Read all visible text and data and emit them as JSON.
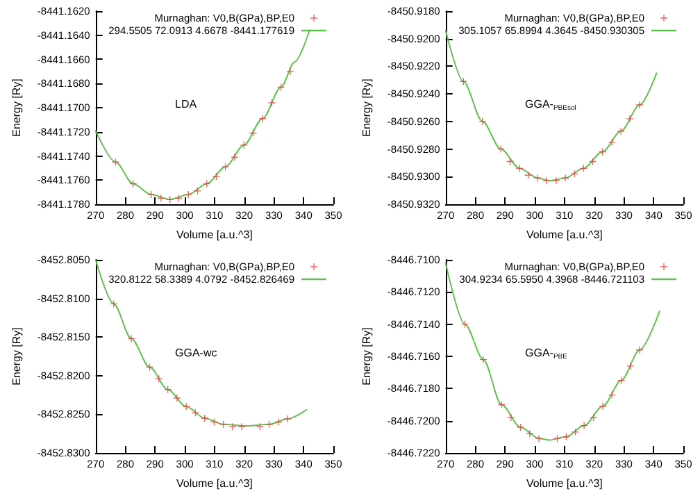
{
  "chart_data": [
    {
      "type": "scatter",
      "xlabel": "Volume [a.u.^3]",
      "ylabel": "Energy [Ry]",
      "annotations": [
        "LDA"
      ],
      "legend": "top right",
      "grid": false,
      "xlim": [
        270,
        350
      ],
      "xticks": [
        270,
        280,
        290,
        300,
        310,
        320,
        330,
        340,
        350
      ],
      "ylim": [
        -8441.178,
        -8441.162
      ],
      "yticks": [
        {
          "value": -8441.178,
          "label": "-8441.1780"
        },
        {
          "value": -8441.176,
          "label": "-8441.1760"
        },
        {
          "value": -8441.174,
          "label": "-8441.1740"
        },
        {
          "value": -8441.172,
          "label": "-8441.1720"
        },
        {
          "value": -8441.17,
          "label": "-8441.1700"
        },
        {
          "value": -8441.168,
          "label": "-8441.1680"
        },
        {
          "value": -8441.166,
          "label": "-8441.1660"
        },
        {
          "value": -8441.164,
          "label": "-8441.1640"
        },
        {
          "value": -8441.162,
          "label": "-8441.1620"
        }
      ],
      "series": [
        {
          "marker": "cross",
          "name": "Murnaghan: V0,B(GPa),BP,E0",
          "color": "#e04040",
          "x": [
            276.7,
            282.6,
            288.7,
            292,
            295,
            297.9,
            301.2,
            304.3,
            307.4,
            310.6,
            313.7,
            316.8,
            319.9,
            323,
            326.2,
            329.3,
            332.4,
            335.5
          ],
          "values": [
            -8441.1745,
            -8441.1763,
            -8441.1772,
            -8441.1775,
            -8441.1776,
            -8441.1775,
            -8441.1772,
            -8441.1769,
            -8441.1763,
            -8441.1757,
            -8441.1749,
            -8441.1741,
            -8441.1731,
            -8441.1721,
            -8441.1709,
            -8441.1696,
            -8441.1683,
            -8441.167
          ]
        },
        {
          "type": "line",
          "marker": "none",
          "name": "294.5505 72.0913 4.6678 -8441.177619",
          "color": "#5fc24f",
          "x": [
            270,
            276.7,
            282.6,
            288.7,
            295,
            301.2,
            307.4,
            313.7,
            319.9,
            326.2,
            332.4,
            337,
            342
          ],
          "values": [
            -8441.1719,
            -8441.1745,
            -8441.1763,
            -8441.1772,
            -8441.1776,
            -8441.1772,
            -8441.1763,
            -8441.1749,
            -8441.1731,
            -8441.1709,
            -8441.1683,
            -8441.1662,
            -8441.1636
          ]
        }
      ]
    },
    {
      "type": "scatter",
      "xlabel": "Volume [a.u.^3]",
      "ylabel": "Energy [Ry]",
      "annotations": [
        "GGA-$_{PBEsol}$"
      ],
      "legend": "top right",
      "grid": false,
      "xlim": [
        270,
        350
      ],
      "xticks": [
        270,
        280,
        290,
        300,
        310,
        320,
        330,
        340,
        350
      ],
      "ylim": [
        -8450.932,
        -8450.918
      ],
      "yticks": [
        {
          "value": -8450.932,
          "label": "-8450.9320"
        },
        {
          "value": -8450.93,
          "label": "-8450.9300"
        },
        {
          "value": -8450.928,
          "label": "-8450.9280"
        },
        {
          "value": -8450.926,
          "label": "-8450.9260"
        },
        {
          "value": -8450.924,
          "label": "-8450.9240"
        },
        {
          "value": -8450.922,
          "label": "-8450.9220"
        },
        {
          "value": -8450.92,
          "label": "-8450.9200"
        },
        {
          "value": -8450.918,
          "label": "-8450.9180"
        }
      ],
      "series": [
        {
          "marker": "cross",
          "name": "Murnaghan: V0,B(GPa),BP,E0",
          "color": "#e04040",
          "x": [
            276,
            282.4,
            288.6,
            291.7,
            294.9,
            297.8,
            301,
            304,
            307.2,
            310.3,
            313.4,
            316.4,
            319.5,
            322.8,
            326,
            329,
            332,
            335.3
          ],
          "values": [
            -8450.9231,
            -8450.926,
            -8450.928,
            -8450.9289,
            -8450.9294,
            -8450.9299,
            -8450.9301,
            -8450.9303,
            -8450.9303,
            -8450.9301,
            -8450.9298,
            -8450.9294,
            -8450.9289,
            -8450.9282,
            -8450.9275,
            -8450.9267,
            -8450.9258,
            -8450.9248
          ]
        },
        {
          "type": "line",
          "marker": "none",
          "name": "305.1057 65.8994 4.3645 -8450.930305",
          "color": "#5fc24f",
          "x": [
            270,
            276,
            282.4,
            288.6,
            294.9,
            301,
            305,
            310.3,
            316.4,
            322.8,
            329,
            335.3,
            341
          ],
          "values": [
            -8450.9194,
            -8450.9231,
            -8450.926,
            -8450.928,
            -8450.9294,
            -8450.9301,
            -8450.9303,
            -8450.9301,
            -8450.9294,
            -8450.9282,
            -8450.9267,
            -8450.9248,
            -8450.9225
          ]
        }
      ]
    },
    {
      "type": "scatter",
      "xlabel": "Volume [a.u.^3]",
      "ylabel": "Energy [Ry]",
      "annotations": [
        "GGA-wc"
      ],
      "legend": "top right",
      "grid": false,
      "xlim": [
        270,
        350
      ],
      "xticks": [
        270,
        280,
        290,
        300,
        310,
        320,
        330,
        340,
        350
      ],
      "ylim": [
        -8452.83,
        -8452.805
      ],
      "yticks": [
        {
          "value": -8452.83,
          "label": "-8452.8300"
        },
        {
          "value": -8452.825,
          "label": "-8452.8250"
        },
        {
          "value": -8452.82,
          "label": "-8452.8200"
        },
        {
          "value": -8452.815,
          "label": "-8452.8150"
        },
        {
          "value": -8452.81,
          "label": "-8452.8100"
        },
        {
          "value": -8452.805,
          "label": "-8452.8050"
        }
      ],
      "series": [
        {
          "marker": "cross",
          "name": "Murnaghan: V0,B(GPa),BP,E0",
          "color": "#e04040",
          "x": [
            276.1,
            282,
            288.2,
            291.3,
            294.3,
            297.4,
            300.5,
            303.6,
            306.7,
            309.9,
            313,
            316.1,
            319.2,
            325.3,
            328.4,
            331.5,
            334.6
          ],
          "values": [
            -8452.8107,
            -8452.8152,
            -8452.8189,
            -8452.8204,
            -8452.8218,
            -8452.8229,
            -8452.824,
            -8452.8248,
            -8452.8255,
            -8452.826,
            -8452.8263,
            -8452.8266,
            -8452.8266,
            -8452.8266,
            -8452.8263,
            -8452.826,
            -8452.8256
          ]
        },
        {
          "type": "line",
          "marker": "none",
          "name": "320.8122 58.3389 4.0792 -8452.826469",
          "color": "#5fc24f",
          "x": [
            270,
            276.1,
            282,
            288.2,
            294.3,
            300.5,
            306.7,
            313,
            320.8,
            328.4,
            334.6,
            341
          ],
          "values": [
            -8452.805,
            -8452.8107,
            -8452.8152,
            -8452.8189,
            -8452.8218,
            -8452.824,
            -8452.8255,
            -8452.8263,
            -8452.8265,
            -8452.8263,
            -8452.8256,
            -8452.8244
          ]
        }
      ]
    },
    {
      "type": "scatter",
      "xlabel": "Volume [a.u.^3]",
      "ylabel": "Energy [Ry]",
      "annotations": [
        "GGA-$_{PBE}$"
      ],
      "legend": "top right",
      "grid": false,
      "xlim": [
        270,
        350
      ],
      "xticks": [
        270,
        280,
        290,
        300,
        310,
        320,
        330,
        340,
        350
      ],
      "ylim": [
        -8446.722,
        -8446.71
      ],
      "yticks": [
        {
          "value": -8446.722,
          "label": "-8446.7220"
        },
        {
          "value": -8446.72,
          "label": "-8446.7200"
        },
        {
          "value": -8446.718,
          "label": "-8446.7180"
        },
        {
          "value": -8446.716,
          "label": "-8446.7160"
        },
        {
          "value": -8446.714,
          "label": "-8446.7140"
        },
        {
          "value": -8446.712,
          "label": "-8446.7120"
        },
        {
          "value": -8446.71,
          "label": "-8446.7100"
        }
      ],
      "series": [
        {
          "marker": "cross",
          "name": "Murnaghan: V0,B(GPa),BP,E0",
          "color": "#e04040",
          "x": [
            276.5,
            282.7,
            288.8,
            292,
            295.2,
            298.3,
            301.4,
            307.6,
            310.6,
            313.7,
            316.6,
            319.8,
            322.9,
            326,
            329.1,
            332.2,
            335.3
          ],
          "values": [
            -8446.714,
            -8446.7162,
            -8446.719,
            -8446.7198,
            -8446.7204,
            -8446.7208,
            -8446.7211,
            -8446.7211,
            -8446.721,
            -8446.7207,
            -8446.7203,
            -8446.7198,
            -8446.7191,
            -8446.7184,
            -8446.7175,
            -8446.7166,
            -8446.7156
          ]
        },
        {
          "type": "line",
          "marker": "none",
          "name": "304.9234 65.5950 4.3968 -8446.721103",
          "color": "#5fc24f",
          "x": [
            270,
            276.5,
            282.7,
            288.8,
            295.2,
            301.4,
            305,
            310.6,
            316.6,
            322.9,
            329.1,
            335.3,
            342
          ],
          "values": [
            -8446.7102,
            -8446.714,
            -8446.7162,
            -8446.719,
            -8446.7204,
            -8446.7211,
            -8446.7212,
            -8446.721,
            -8446.7203,
            -8446.7191,
            -8446.7175,
            -8446.7156,
            -8446.7132
          ]
        }
      ]
    }
  ]
}
